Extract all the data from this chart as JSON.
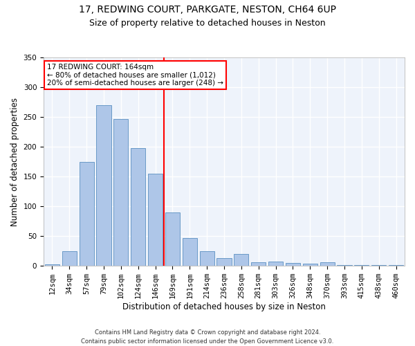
{
  "title1": "17, REDWING COURT, PARKGATE, NESTON, CH64 6UP",
  "title2": "Size of property relative to detached houses in Neston",
  "xlabel": "Distribution of detached houses by size in Neston",
  "ylabel": "Number of detached properties",
  "footnote1": "Contains HM Land Registry data © Crown copyright and database right 2024.",
  "footnote2": "Contains public sector information licensed under the Open Government Licence v3.0.",
  "categories": [
    "12sqm",
    "34sqm",
    "57sqm",
    "79sqm",
    "102sqm",
    "124sqm",
    "146sqm",
    "169sqm",
    "191sqm",
    "214sqm",
    "236sqm",
    "258sqm",
    "281sqm",
    "303sqm",
    "326sqm",
    "348sqm",
    "370sqm",
    "393sqm",
    "415sqm",
    "438sqm",
    "460sqm"
  ],
  "values": [
    3,
    25,
    175,
    270,
    247,
    198,
    155,
    90,
    47,
    25,
    13,
    20,
    6,
    7,
    5,
    4,
    6,
    1,
    1,
    1,
    1
  ],
  "bar_color": "#aec6e8",
  "bar_edge_color": "#5a8fc0",
  "vline_x_index": 7,
  "vline_color": "red",
  "annotation_text": "17 REDWING COURT: 164sqm\n← 80% of detached houses are smaller (1,012)\n20% of semi-detached houses are larger (248) →",
  "annotation_box_color": "white",
  "annotation_box_edge_color": "red",
  "ylim": [
    0,
    350
  ],
  "yticks": [
    0,
    50,
    100,
    150,
    200,
    250,
    300,
    350
  ],
  "bg_color": "#eef3fb",
  "grid_color": "white",
  "title1_fontsize": 10,
  "title2_fontsize": 9,
  "xlabel_fontsize": 8.5,
  "ylabel_fontsize": 8.5,
  "tick_fontsize": 7.5,
  "annot_fontsize": 7.5,
  "footnote_fontsize": 6
}
